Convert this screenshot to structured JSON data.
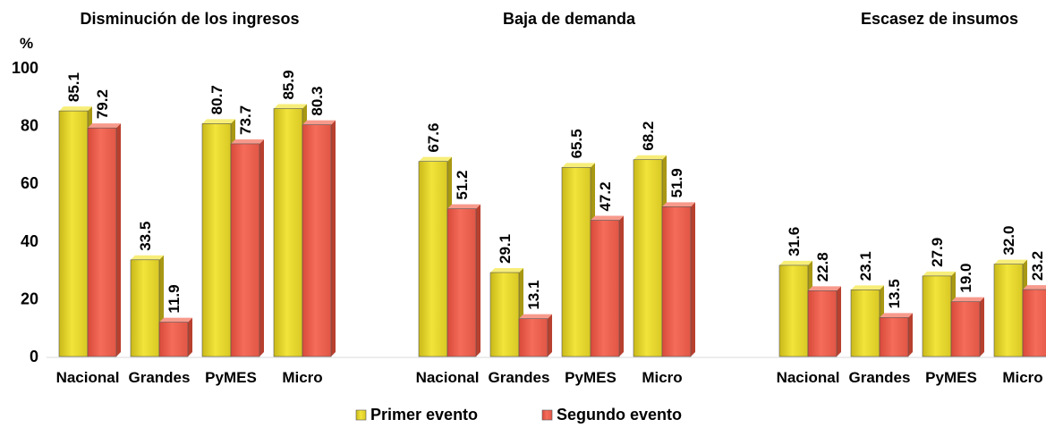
{
  "chart_data": {
    "type": "bar",
    "ylabel": "%",
    "ylim": [
      0,
      100
    ],
    "yticks": [
      0,
      20,
      40,
      60,
      80,
      100
    ],
    "grid": false,
    "legend_position": "bottom",
    "legend": [
      {
        "name": "Primer evento",
        "color": "#e6d52a"
      },
      {
        "name": "Segundo evento",
        "color": "#ef6150"
      }
    ],
    "groups": [
      {
        "title": "Disminución de los ingresos",
        "categories": [
          "Nacional",
          "Grandes",
          "PyMES",
          "Micro"
        ],
        "series": [
          {
            "name": "Primer evento",
            "values": [
              85.1,
              33.5,
              80.7,
              85.9
            ]
          },
          {
            "name": "Segundo evento",
            "values": [
              79.2,
              11.9,
              73.7,
              80.3
            ]
          }
        ]
      },
      {
        "title": "Baja de demanda",
        "categories": [
          "Nacional",
          "Grandes",
          "PyMES",
          "Micro"
        ],
        "series": [
          {
            "name": "Primer evento",
            "values": [
              67.6,
              29.1,
              65.5,
              68.2
            ]
          },
          {
            "name": "Segundo evento",
            "values": [
              51.2,
              13.1,
              47.2,
              51.9
            ]
          }
        ]
      },
      {
        "title": "Escasez de insumos",
        "categories": [
          "Nacional",
          "Grandes",
          "PyMES",
          "Micro"
        ],
        "series": [
          {
            "name": "Primer evento",
            "values": [
              31.6,
              23.1,
              27.9,
              32.0
            ]
          },
          {
            "name": "Segundo evento",
            "values": [
              22.8,
              13.5,
              19.0,
              23.2
            ]
          }
        ]
      }
    ]
  }
}
